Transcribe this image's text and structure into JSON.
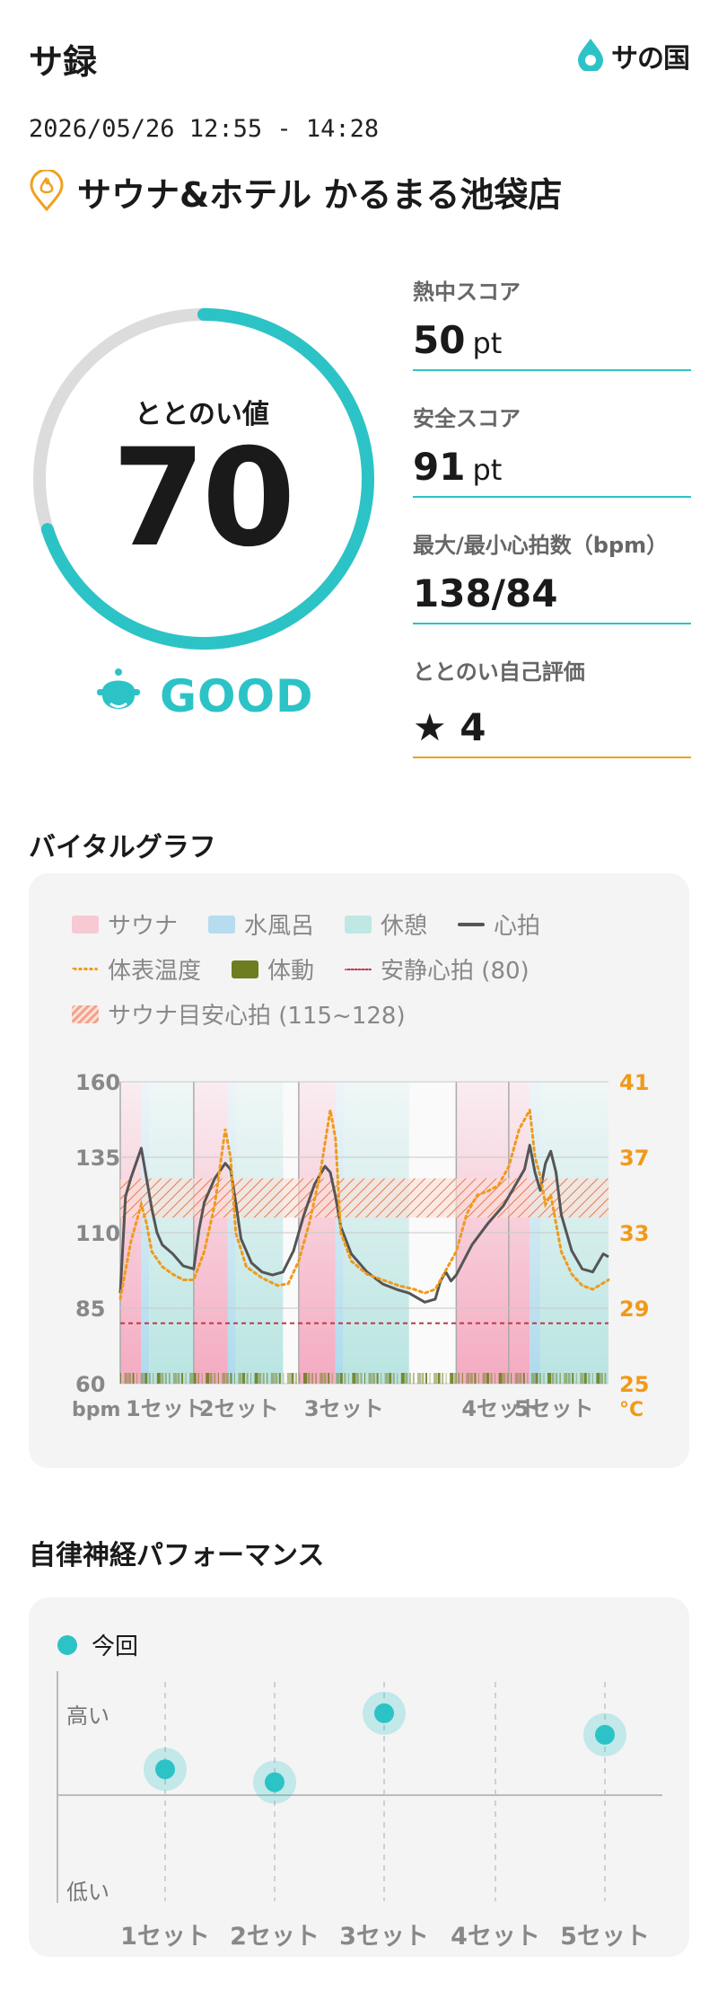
{
  "header": {
    "app_title": "サ録",
    "logo_text": "サの国"
  },
  "session": {
    "datetime": "2026/05/26 12:55 - 14:28",
    "facility": "サウナ&ホテル かるまる池袋店"
  },
  "score": {
    "label": "ととのい値",
    "value": "70",
    "progress": 0.7,
    "rating": "GOOD"
  },
  "metrics": [
    {
      "label": "熱中スコア",
      "value": "50",
      "unit": "pt"
    },
    {
      "label": "安全スコア",
      "value": "91",
      "unit": "pt"
    },
    {
      "label": "最大/最小心拍数（bpm）",
      "value": "138/84",
      "unit": ""
    },
    {
      "label": "ととのい自己評価",
      "value": "★ 4",
      "unit": ""
    }
  ],
  "vital": {
    "title": "バイタルグラフ",
    "legend": {
      "sauna": "サウナ",
      "cold": "水風呂",
      "rest": "休憩",
      "hr": "心拍",
      "temp": "体表温度",
      "motion": "体動",
      "resting": "安静心拍 (80)",
      "target": "サウナ目安心拍 (115~128)"
    },
    "y_left_ticks": [
      "160",
      "135",
      "110",
      "85",
      "60"
    ],
    "y_right_ticks": [
      "41",
      "37",
      "33",
      "29",
      "25"
    ],
    "left_unit": "bpm",
    "right_unit": "°C",
    "sets": [
      "1セット",
      "2セット",
      "3セット",
      "4セット",
      "5セット"
    ]
  },
  "chart_data": {
    "type": "line",
    "x_range": [
      0,
      93
    ],
    "ylim_left": [
      60,
      160
    ],
    "ylim_right": [
      25,
      41
    ],
    "resting_hr": 80,
    "target_hr": [
      115,
      128
    ],
    "phases": [
      {
        "kind": "sauna",
        "start": 0,
        "end": 4
      },
      {
        "kind": "cold",
        "start": 4,
        "end": 5.5
      },
      {
        "kind": "rest",
        "start": 5.5,
        "end": 14
      },
      {
        "kind": "sauna",
        "start": 14,
        "end": 20.5
      },
      {
        "kind": "cold",
        "start": 20.5,
        "end": 22
      },
      {
        "kind": "rest",
        "start": 22,
        "end": 31
      },
      {
        "kind": "sauna",
        "start": 34,
        "end": 41
      },
      {
        "kind": "cold",
        "start": 41,
        "end": 42.5
      },
      {
        "kind": "rest",
        "start": 42.5,
        "end": 55
      },
      {
        "kind": "sauna",
        "start": 64,
        "end": 78
      },
      {
        "kind": "cold",
        "start": 78,
        "end": 80
      },
      {
        "kind": "rest",
        "start": 80,
        "end": 93
      }
    ],
    "series": [
      {
        "name": "心拍",
        "axis": "left",
        "points": [
          [
            0,
            90
          ],
          [
            1,
            122
          ],
          [
            2,
            128
          ],
          [
            3,
            133
          ],
          [
            4,
            138
          ],
          [
            5,
            128
          ],
          [
            6,
            118
          ],
          [
            7,
            110
          ],
          [
            8,
            106
          ],
          [
            10,
            103
          ],
          [
            12,
            99
          ],
          [
            14,
            98
          ],
          [
            15,
            111
          ],
          [
            16,
            120
          ],
          [
            18,
            128
          ],
          [
            20,
            133
          ],
          [
            21,
            131
          ],
          [
            22,
            120
          ],
          [
            23,
            108
          ],
          [
            25,
            100
          ],
          [
            27,
            97
          ],
          [
            29,
            96
          ],
          [
            31,
            97
          ],
          [
            33,
            104
          ],
          [
            35,
            116
          ],
          [
            37,
            126
          ],
          [
            39,
            132
          ],
          [
            40,
            130
          ],
          [
            41,
            122
          ],
          [
            42,
            112
          ],
          [
            44,
            103
          ],
          [
            47,
            97
          ],
          [
            50,
            93
          ],
          [
            53,
            91
          ],
          [
            55,
            90
          ],
          [
            57,
            88
          ],
          [
            58,
            87
          ],
          [
            60,
            88
          ],
          [
            61,
            94
          ],
          [
            62,
            97
          ],
          [
            63,
            94
          ],
          [
            64,
            96
          ],
          [
            67,
            106
          ],
          [
            70,
            113
          ],
          [
            73,
            119
          ],
          [
            75,
            125
          ],
          [
            77,
            131
          ],
          [
            78,
            139
          ],
          [
            79,
            130
          ],
          [
            80,
            124
          ],
          [
            81,
            133
          ],
          [
            82,
            137
          ],
          [
            83,
            130
          ],
          [
            84,
            116
          ],
          [
            86,
            104
          ],
          [
            88,
            98
          ],
          [
            90,
            97
          ],
          [
            92,
            103
          ],
          [
            93,
            102
          ]
        ]
      },
      {
        "name": "体表温度",
        "axis": "right",
        "points": [
          [
            0,
            29.5
          ],
          [
            1,
            31
          ],
          [
            2,
            32.5
          ],
          [
            4,
            34.5
          ],
          [
            5,
            33.5
          ],
          [
            6,
            32
          ],
          [
            8,
            31.2
          ],
          [
            10,
            30.8
          ],
          [
            12,
            30.5
          ],
          [
            14,
            30.5
          ],
          [
            16,
            32
          ],
          [
            18,
            34.5
          ],
          [
            20,
            38.5
          ],
          [
            21,
            37
          ],
          [
            22,
            33
          ],
          [
            24,
            31.2
          ],
          [
            27,
            30.6
          ],
          [
            30,
            30.2
          ],
          [
            32,
            30.3
          ],
          [
            34,
            31.5
          ],
          [
            36,
            33.5
          ],
          [
            38,
            36
          ],
          [
            40,
            39.5
          ],
          [
            41,
            38
          ],
          [
            42,
            33
          ],
          [
            44,
            31.5
          ],
          [
            47,
            30.8
          ],
          [
            50,
            30.5
          ],
          [
            53,
            30.2
          ],
          [
            56,
            30
          ],
          [
            58,
            29.8
          ],
          [
            60,
            30
          ],
          [
            62,
            31
          ],
          [
            64,
            32
          ],
          [
            66,
            34
          ],
          [
            68,
            35
          ],
          [
            70,
            35.2
          ],
          [
            72,
            35.5
          ],
          [
            74,
            36.5
          ],
          [
            76,
            38.5
          ],
          [
            78,
            39.5
          ],
          [
            79,
            37
          ],
          [
            80,
            36
          ],
          [
            81,
            34.5
          ],
          [
            82,
            35
          ],
          [
            84,
            32
          ],
          [
            86,
            30.8
          ],
          [
            88,
            30.2
          ],
          [
            90,
            30
          ],
          [
            93,
            30.5
          ]
        ]
      }
    ],
    "set_labels": [
      {
        "label": "1セット",
        "at": 0
      },
      {
        "label": "2セット",
        "at": 14
      },
      {
        "label": "3セット",
        "at": 34
      },
      {
        "label": "4セット",
        "at": 64
      },
      {
        "label": "5セット",
        "at": 74
      }
    ]
  },
  "perf": {
    "title": "自律神経パフォーマンス",
    "legend": "今回",
    "y_high": "高い",
    "y_low": "低い",
    "sets": [
      "1セット",
      "2セット",
      "3セット",
      "4セット",
      "5セット"
    ],
    "values": [
      0.62,
      0.56,
      0.88,
      null,
      0.78
    ]
  },
  "colors": {
    "accent": "#2cc3c7",
    "sauna": "#f4a6bd",
    "cold": "#a9d8ec",
    "rest": "#b5e3e0",
    "hr": "#555555",
    "temp": "#f09a1a",
    "motion": "#6e7d1f",
    "resting": "#c0394b",
    "target": "#e87a5a",
    "rating": "#2cc3c7"
  }
}
